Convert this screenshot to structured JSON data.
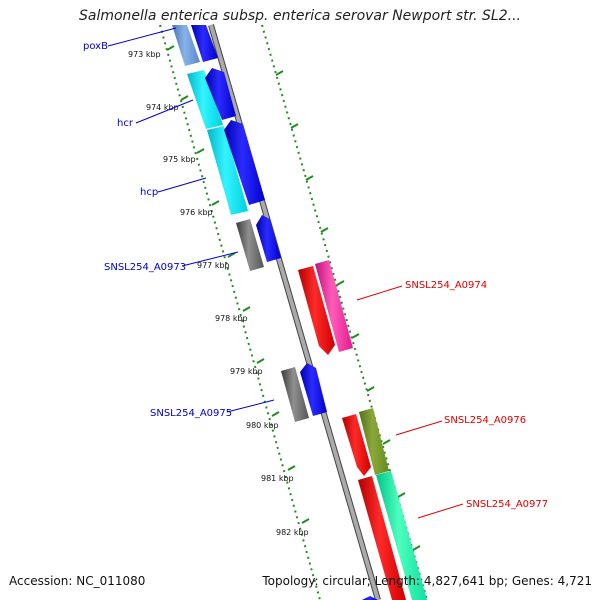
{
  "title": "Salmonella enterica subsp. enterica serovar Newport str. SL2...",
  "footer": {
    "accession": "Accession: NC_011080",
    "stats": "Topology: circular; Length: 4,827,641 bp; Genes: 4,721"
  },
  "colors": {
    "forward_label": "#0000cc",
    "reverse_label": "#dd0000",
    "tick": "#228b22",
    "backbone": "#8a8a8a"
  },
  "ticks": [
    "973 kbp",
    "974 kbp",
    "975 kbp",
    "976 kbp",
    "977 kbp",
    "978 kbp",
    "979 kbp",
    "980 kbp",
    "981 kbp",
    "982 kbp"
  ],
  "gene_labels": [
    {
      "text": "poxB",
      "strand": "forward"
    },
    {
      "text": "hcr",
      "strand": "forward"
    },
    {
      "text": "hcp",
      "strand": "forward"
    },
    {
      "text": "SNSL254_A0973",
      "strand": "forward"
    },
    {
      "text": "SNSL254_A0975",
      "strand": "forward"
    },
    {
      "text": "SNSL254_A0974",
      "strand": "reverse"
    },
    {
      "text": "SNSL254_A0976",
      "strand": "reverse"
    },
    {
      "text": "SNSL254_A0977",
      "strand": "reverse"
    }
  ]
}
